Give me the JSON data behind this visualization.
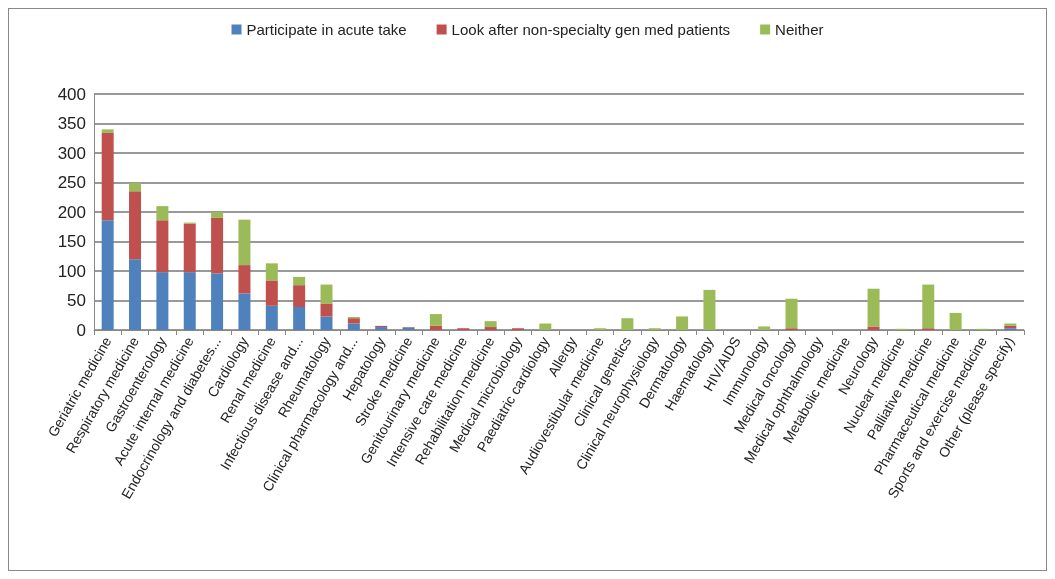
{
  "chart_data": {
    "type": "bar",
    "stacked": true,
    "legend": "top",
    "grid": "y",
    "categories": [
      "Geriatric medicine",
      "Respiratory medicine",
      "Gastroenterology",
      "Acute internal medicine",
      "Endocrinology and diabetes...",
      "Cardiology",
      "Renal medicine",
      "Infectious disease and...",
      "Rheumatology",
      "Clinical pharmacology and...",
      "Hepatology",
      "Stroke medicine",
      "Genitourinary medicine",
      "Intensive care medicine",
      "Rehabilitation medicine",
      "Medical microbiology",
      "Paediatric cardiology",
      "Allergy",
      "Audiovestibular medicine",
      "Clinical genetics",
      "Clinical neurophysiology",
      "Dermatology",
      "Haematology",
      "HIV/AIDS",
      "Immunology",
      "Medical oncology",
      "Medical ophthalmology",
      "Metabolic medicine",
      "Neurology",
      "Nuclear medicine",
      "Palliative medicine",
      "Pharmaceutical medicine",
      "Sports and exercise medicine",
      "Other (please specify)"
    ],
    "series": [
      {
        "name": "Participate in acute take",
        "color": "#4f81bd",
        "values": [
          186,
          120,
          98,
          98,
          96,
          62,
          41,
          39,
          23,
          11,
          5,
          4,
          0,
          0,
          0,
          0,
          0,
          0,
          0,
          0,
          0,
          0,
          0,
          0,
          0,
          0,
          0,
          0,
          0,
          0,
          0,
          0,
          0,
          3
        ]
      },
      {
        "name": "Look after non-specialty gen med patients",
        "color": "#c0504d",
        "values": [
          148,
          115,
          88,
          82,
          94,
          48,
          43,
          37,
          22,
          9,
          2,
          1,
          7,
          3,
          5,
          3,
          0,
          0,
          0,
          0,
          0,
          0,
          0,
          0,
          0,
          3,
          0,
          0,
          6,
          0,
          3,
          0,
          0,
          4
        ]
      },
      {
        "name": "Neither",
        "color": "#9bbb59",
        "values": [
          6,
          14,
          24,
          2,
          10,
          77,
          29,
          14,
          32,
          2,
          0,
          0,
          20,
          null,
          10,
          null,
          11,
          0,
          3,
          20,
          3,
          23,
          68,
          0,
          6,
          50,
          0,
          0,
          64,
          2,
          74,
          29,
          2,
          4
        ]
      }
    ],
    "ylim": [
      0,
      400
    ],
    "yticks": [
      0,
      50,
      100,
      150,
      200,
      250,
      300,
      350,
      400
    ]
  }
}
